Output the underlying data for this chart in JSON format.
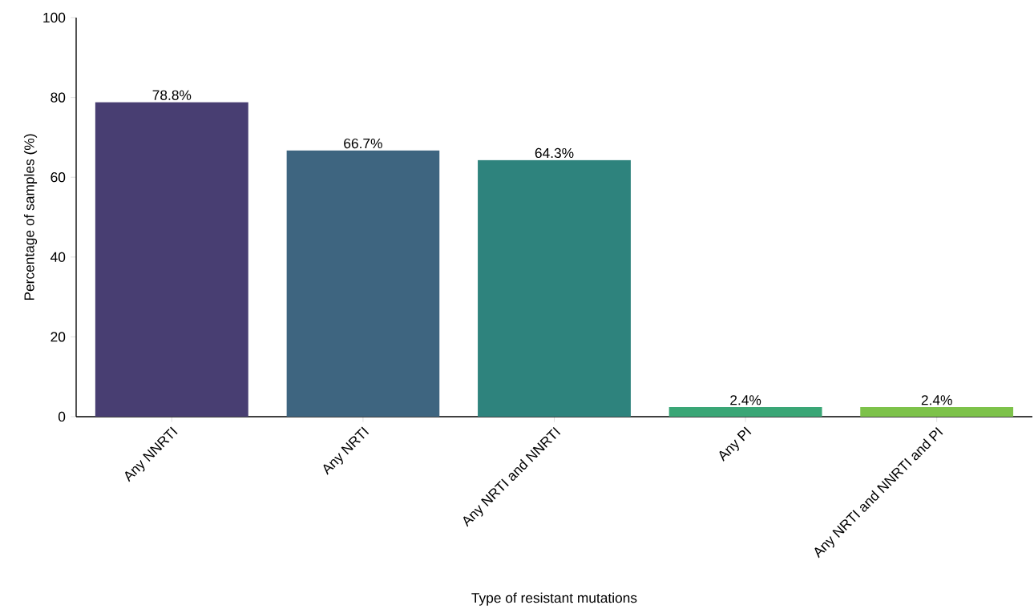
{
  "chart_data": {
    "type": "bar",
    "xlabel": "Type of resistant mutations",
    "ylabel": "Percentage of samples (%)",
    "categories": [
      "Any NNRTI",
      "Any NRTI",
      "Any NRTI and NNRTI",
      "Any PI",
      "Any NRTI and NNRTI and PI"
    ],
    "values": [
      78.8,
      66.7,
      64.3,
      2.4,
      2.4
    ],
    "colors": [
      "#483e72",
      "#3e6580",
      "#2e837d",
      "#3aa676",
      "#7dc24a"
    ],
    "value_labels": [
      "78.8%",
      "66.7%",
      "64.3%",
      "2.4%",
      "2.4%"
    ],
    "ylim": [
      0,
      100
    ],
    "yticks": [
      0,
      20,
      40,
      60,
      80,
      100
    ],
    "grid": false
  }
}
